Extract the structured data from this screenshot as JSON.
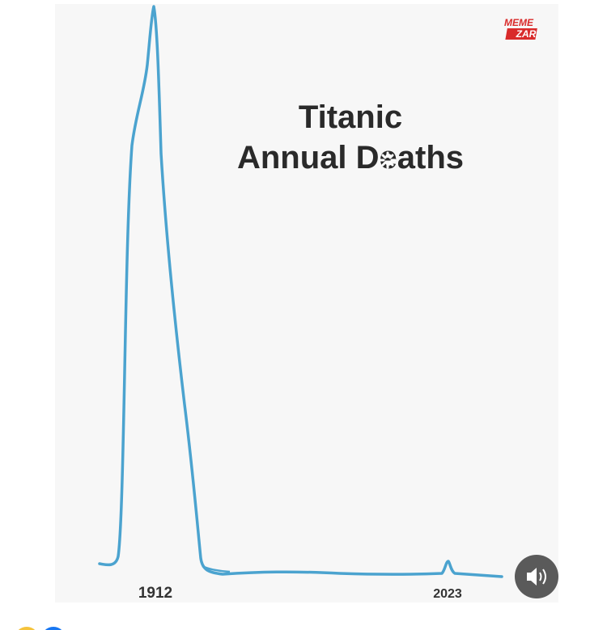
{
  "post": {
    "image": {
      "title_line1": "Titanic",
      "title_line2": "Annual Deaths",
      "label_start": "1912",
      "label_end": "2023",
      "watermark_top": "MEME",
      "watermark_bottom": "ZAR"
    }
  }
}
